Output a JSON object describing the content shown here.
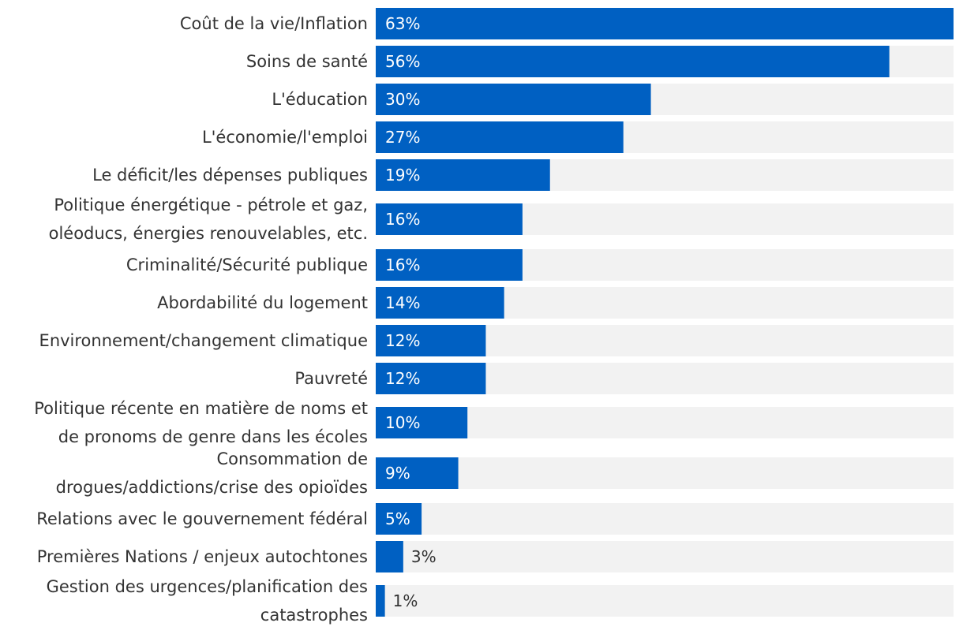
{
  "chart_data": {
    "type": "bar",
    "orientation": "horizontal",
    "title": "",
    "xlabel": "",
    "ylabel": "",
    "xlim": [
      0,
      63
    ],
    "grid": false,
    "legend": "none",
    "colors": {
      "bar": "#0060c2",
      "track": "#f2f2f2",
      "label_text": "#333333",
      "value_inside": "#ffffff",
      "value_outside": "#333333"
    },
    "categories": [
      [
        "Coût de la vie/Inflation"
      ],
      [
        "Soins de santé"
      ],
      [
        "L'éducation"
      ],
      [
        "L'économie/l'emploi"
      ],
      [
        "Le déficit/les dépenses publiques"
      ],
      [
        "Politique énergétique - pétrole et gaz,",
        "oléoducs, énergies renouvelables, etc."
      ],
      [
        "Criminalité/Sécurité publique"
      ],
      [
        "Abordabilité du logement"
      ],
      [
        "Environnement/changement climatique"
      ],
      [
        "Pauvreté"
      ],
      [
        "Politique récente en matière de noms et",
        "de pronoms de genre dans les écoles"
      ],
      [
        "Consommation de",
        "drogues/addictions/crise des opioïdes"
      ],
      [
        "Relations avec le gouvernement fédéral"
      ],
      [
        "Premières Nations / enjeux autochtones"
      ],
      [
        "Gestion des urgences/planification des",
        "catastrophes"
      ]
    ],
    "values": [
      63,
      56,
      30,
      27,
      19,
      16,
      16,
      14,
      12,
      12,
      10,
      9,
      5,
      3,
      1
    ],
    "value_labels": [
      "63%",
      "56%",
      "30%",
      "27%",
      "19%",
      "16%",
      "16%",
      "14%",
      "12%",
      "12%",
      "10%",
      "9%",
      "5%",
      "3%",
      "1%"
    ]
  }
}
